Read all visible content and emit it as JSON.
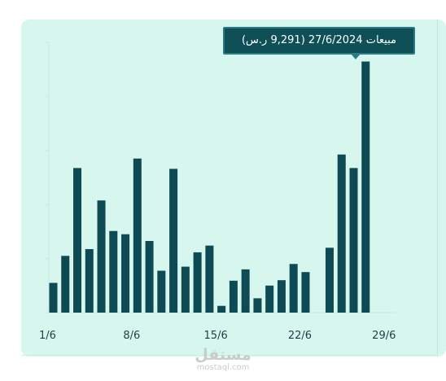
{
  "chart_data": {
    "type": "bar",
    "categories": [
      "1/6",
      "2/6",
      "3/6",
      "4/6",
      "5/6",
      "6/6",
      "7/6",
      "8/6",
      "9/6",
      "10/6",
      "11/6",
      "12/6",
      "13/6",
      "14/6",
      "15/6",
      "16/6",
      "17/6",
      "18/6",
      "19/6",
      "20/6",
      "21/6",
      "22/6",
      "23/6",
      "24/6",
      "25/6",
      "26/6",
      "27/6"
    ],
    "values": [
      1100,
      2100,
      5350,
      2350,
      4150,
      3020,
      2900,
      5700,
      2650,
      1550,
      5320,
      1700,
      2230,
      2480,
      250,
      1180,
      1600,
      530,
      1000,
      1200,
      1800,
      1500,
      0,
      2400,
      5850,
      5350,
      9291
    ],
    "x_tick_labels": [
      "1/6",
      "8/6",
      "15/6",
      "22/6",
      "29/6"
    ],
    "ylim": [
      0,
      10000
    ],
    "bar_color": "#0e4a53",
    "background_color": "#d6f6ee",
    "grid": false,
    "tooltip": {
      "category_index": 26,
      "text": "مبيعات 27/6/2024 (9,291 ر.س)"
    }
  },
  "watermark": {
    "logo": "مستقل",
    "domain": "mostaql.com"
  }
}
